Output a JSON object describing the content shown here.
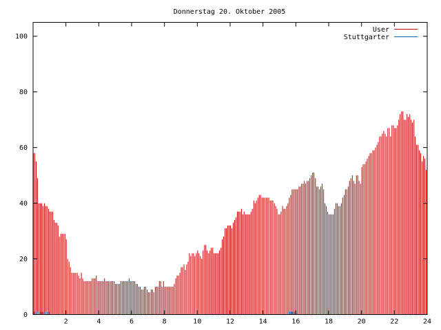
{
  "chart_data": {
    "type": "bar",
    "title": "Donnerstag 20. Oktober 2005",
    "xlabel": "",
    "ylabel": "",
    "xlim": [
      0,
      24
    ],
    "ylim": [
      0,
      105
    ],
    "x_ticks": [
      2,
      4,
      6,
      8,
      10,
      12,
      14,
      16,
      18,
      20,
      22,
      24
    ],
    "y_ticks": [
      0,
      20,
      40,
      60,
      80,
      100
    ],
    "grid": false,
    "legend_position": "top-right",
    "bar_width_hours": 0.042,
    "series": [
      {
        "name": "User",
        "color": "#cc0000",
        "points": [
          [
            0.0,
            58
          ],
          [
            0.08,
            58
          ],
          [
            0.17,
            55
          ],
          [
            0.25,
            49
          ],
          [
            0.33,
            40
          ],
          [
            0.42,
            40
          ],
          [
            0.5,
            40
          ],
          [
            0.58,
            39
          ],
          [
            0.67,
            40
          ],
          [
            0.75,
            39
          ],
          [
            0.83,
            39
          ],
          [
            0.92,
            38
          ],
          [
            1.0,
            37
          ],
          [
            1.08,
            37
          ],
          [
            1.17,
            37
          ],
          [
            1.25,
            34
          ],
          [
            1.33,
            33
          ],
          [
            1.42,
            33
          ],
          [
            1.5,
            32
          ],
          [
            1.58,
            28
          ],
          [
            1.67,
            29
          ],
          [
            1.75,
            29
          ],
          [
            1.83,
            29
          ],
          [
            1.92,
            29
          ],
          [
            2.0,
            27
          ],
          [
            2.08,
            20
          ],
          [
            2.17,
            19
          ],
          [
            2.25,
            17
          ],
          [
            2.33,
            15
          ],
          [
            2.42,
            15
          ],
          [
            2.5,
            15
          ],
          [
            2.58,
            15
          ],
          [
            2.67,
            15
          ],
          [
            2.75,
            14
          ],
          [
            2.83,
            13
          ],
          [
            2.92,
            15
          ],
          [
            3.0,
            13
          ],
          [
            3.08,
            12
          ],
          [
            3.17,
            12
          ],
          [
            3.25,
            12
          ],
          [
            3.33,
            12
          ],
          [
            3.42,
            12
          ],
          [
            3.5,
            12
          ],
          [
            3.58,
            13
          ],
          [
            3.67,
            13
          ],
          [
            3.75,
            13
          ],
          [
            3.83,
            14
          ],
          [
            3.92,
            12
          ],
          [
            4.0,
            12
          ],
          [
            4.08,
            12
          ],
          [
            4.17,
            12
          ],
          [
            4.25,
            12
          ],
          [
            4.33,
            13
          ],
          [
            4.42,
            12
          ],
          [
            4.5,
            12
          ],
          [
            4.58,
            12
          ],
          [
            4.67,
            12
          ],
          [
            4.75,
            12
          ],
          [
            4.83,
            12
          ],
          [
            4.92,
            12
          ],
          [
            5.0,
            11
          ],
          [
            5.08,
            11
          ],
          [
            5.17,
            11
          ],
          [
            5.25,
            11
          ],
          [
            5.33,
            12
          ],
          [
            5.42,
            12
          ],
          [
            5.5,
            12
          ],
          [
            5.58,
            12
          ],
          [
            5.67,
            12
          ],
          [
            5.75,
            12
          ],
          [
            5.83,
            13
          ],
          [
            5.92,
            12
          ],
          [
            6.0,
            12
          ],
          [
            6.08,
            12
          ],
          [
            6.17,
            12
          ],
          [
            6.25,
            11
          ],
          [
            6.33,
            11
          ],
          [
            6.42,
            10
          ],
          [
            6.5,
            10
          ],
          [
            6.58,
            9
          ],
          [
            6.67,
            9
          ],
          [
            6.75,
            10
          ],
          [
            6.83,
            10
          ],
          [
            6.92,
            9
          ],
          [
            7.0,
            8
          ],
          [
            7.08,
            8
          ],
          [
            7.17,
            9
          ],
          [
            7.25,
            9
          ],
          [
            7.33,
            8
          ],
          [
            7.42,
            10
          ],
          [
            7.5,
            10
          ],
          [
            7.58,
            10
          ],
          [
            7.67,
            12
          ],
          [
            7.75,
            12
          ],
          [
            7.83,
            10
          ],
          [
            7.92,
            12
          ],
          [
            8.0,
            10
          ],
          [
            8.08,
            10
          ],
          [
            8.17,
            10
          ],
          [
            8.25,
            10
          ],
          [
            8.33,
            10
          ],
          [
            8.42,
            10
          ],
          [
            8.5,
            10
          ],
          [
            8.58,
            11
          ],
          [
            8.67,
            13
          ],
          [
            8.75,
            14
          ],
          [
            8.83,
            14
          ],
          [
            8.92,
            15
          ],
          [
            9.0,
            17
          ],
          [
            9.08,
            17
          ],
          [
            9.17,
            18
          ],
          [
            9.25,
            16
          ],
          [
            9.33,
            18
          ],
          [
            9.42,
            19
          ],
          [
            9.5,
            22
          ],
          [
            9.58,
            21
          ],
          [
            9.67,
            22
          ],
          [
            9.75,
            22
          ],
          [
            9.83,
            21
          ],
          [
            9.92,
            22
          ],
          [
            10.0,
            23
          ],
          [
            10.08,
            22
          ],
          [
            10.17,
            21
          ],
          [
            10.25,
            20
          ],
          [
            10.33,
            23
          ],
          [
            10.42,
            25
          ],
          [
            10.5,
            25
          ],
          [
            10.58,
            23
          ],
          [
            10.67,
            22
          ],
          [
            10.75,
            23
          ],
          [
            10.83,
            24
          ],
          [
            10.92,
            24
          ],
          [
            11.0,
            22
          ],
          [
            11.08,
            22
          ],
          [
            11.17,
            22
          ],
          [
            11.25,
            22
          ],
          [
            11.33,
            23
          ],
          [
            11.42,
            24
          ],
          [
            11.5,
            27
          ],
          [
            11.58,
            28
          ],
          [
            11.67,
            31
          ],
          [
            11.75,
            31
          ],
          [
            11.83,
            32
          ],
          [
            11.92,
            32
          ],
          [
            12.0,
            32
          ],
          [
            12.08,
            31
          ],
          [
            12.17,
            33
          ],
          [
            12.25,
            34
          ],
          [
            12.33,
            35
          ],
          [
            12.42,
            37
          ],
          [
            12.5,
            37
          ],
          [
            12.58,
            37
          ],
          [
            12.67,
            38
          ],
          [
            12.75,
            36
          ],
          [
            12.83,
            37
          ],
          [
            12.92,
            36
          ],
          [
            13.0,
            36
          ],
          [
            13.08,
            36
          ],
          [
            13.17,
            36
          ],
          [
            13.25,
            37
          ],
          [
            13.33,
            38
          ],
          [
            13.42,
            41
          ],
          [
            13.5,
            40
          ],
          [
            13.58,
            41
          ],
          [
            13.67,
            42
          ],
          [
            13.75,
            43
          ],
          [
            13.83,
            43
          ],
          [
            13.92,
            42
          ],
          [
            14.0,
            42
          ],
          [
            14.08,
            42
          ],
          [
            14.17,
            42
          ],
          [
            14.25,
            42
          ],
          [
            14.33,
            42
          ],
          [
            14.42,
            41
          ],
          [
            14.5,
            41
          ],
          [
            14.58,
            41
          ],
          [
            14.67,
            40
          ],
          [
            14.75,
            39
          ],
          [
            14.83,
            38
          ],
          [
            14.92,
            36
          ],
          [
            15.0,
            36
          ],
          [
            15.08,
            37
          ],
          [
            15.17,
            39
          ],
          [
            15.25,
            38
          ],
          [
            15.33,
            38
          ],
          [
            15.42,
            39
          ],
          [
            15.5,
            40
          ],
          [
            15.58,
            42
          ],
          [
            15.67,
            43
          ],
          [
            15.75,
            45
          ],
          [
            15.83,
            45
          ],
          [
            15.92,
            45
          ],
          [
            16.0,
            45
          ],
          [
            16.08,
            45
          ],
          [
            16.17,
            46
          ],
          [
            16.25,
            46
          ],
          [
            16.33,
            47
          ],
          [
            16.42,
            47
          ],
          [
            16.5,
            48
          ],
          [
            16.58,
            47
          ],
          [
            16.67,
            48
          ],
          [
            16.75,
            48
          ],
          [
            16.83,
            49
          ],
          [
            16.92,
            50
          ],
          [
            17.0,
            51
          ],
          [
            17.08,
            51
          ],
          [
            17.17,
            49
          ],
          [
            17.25,
            46
          ],
          [
            17.33,
            46
          ],
          [
            17.42,
            45
          ],
          [
            17.5,
            46
          ],
          [
            17.58,
            47
          ],
          [
            17.67,
            45
          ],
          [
            17.75,
            40
          ],
          [
            17.83,
            39
          ],
          [
            17.92,
            37
          ],
          [
            18.0,
            36
          ],
          [
            18.08,
            36
          ],
          [
            18.17,
            36
          ],
          [
            18.25,
            36
          ],
          [
            18.33,
            38
          ],
          [
            18.42,
            40
          ],
          [
            18.5,
            40
          ],
          [
            18.58,
            39
          ],
          [
            18.67,
            39
          ],
          [
            18.75,
            40
          ],
          [
            18.83,
            42
          ],
          [
            18.92,
            43
          ],
          [
            19.0,
            45
          ],
          [
            19.08,
            45
          ],
          [
            19.17,
            46
          ],
          [
            19.25,
            48
          ],
          [
            19.33,
            49
          ],
          [
            19.42,
            50
          ],
          [
            19.5,
            48
          ],
          [
            19.58,
            47
          ],
          [
            19.67,
            50
          ],
          [
            19.75,
            50
          ],
          [
            19.83,
            48
          ],
          [
            19.92,
            47
          ],
          [
            20.0,
            53
          ],
          [
            20.08,
            54
          ],
          [
            20.17,
            54
          ],
          [
            20.25,
            55
          ],
          [
            20.33,
            56
          ],
          [
            20.42,
            57
          ],
          [
            20.5,
            58
          ],
          [
            20.58,
            58
          ],
          [
            20.67,
            59
          ],
          [
            20.75,
            59
          ],
          [
            20.83,
            60
          ],
          [
            20.92,
            61
          ],
          [
            21.0,
            62
          ],
          [
            21.08,
            64
          ],
          [
            21.17,
            64
          ],
          [
            21.25,
            65
          ],
          [
            21.33,
            66
          ],
          [
            21.42,
            65
          ],
          [
            21.5,
            64
          ],
          [
            21.58,
            67
          ],
          [
            21.67,
            67
          ],
          [
            21.75,
            64
          ],
          [
            21.83,
            68
          ],
          [
            21.92,
            68
          ],
          [
            22.0,
            67
          ],
          [
            22.08,
            67
          ],
          [
            22.17,
            68
          ],
          [
            22.25,
            70
          ],
          [
            22.33,
            72
          ],
          [
            22.42,
            73
          ],
          [
            22.5,
            73
          ],
          [
            22.58,
            70
          ],
          [
            22.67,
            70
          ],
          [
            22.75,
            72
          ],
          [
            22.83,
            71
          ],
          [
            22.92,
            72
          ],
          [
            23.0,
            70
          ],
          [
            23.08,
            69
          ],
          [
            23.17,
            70
          ],
          [
            23.25,
            64
          ],
          [
            23.33,
            61
          ],
          [
            23.42,
            61
          ],
          [
            23.5,
            59
          ],
          [
            23.58,
            58
          ],
          [
            23.67,
            55
          ],
          [
            23.75,
            57
          ],
          [
            23.83,
            56
          ],
          [
            23.92,
            52
          ]
        ]
      },
      {
        "name": "Stuttgarter",
        "color": "#0066b3",
        "points": [
          [
            0.05,
            1
          ],
          [
            0.15,
            1
          ],
          [
            0.25,
            1
          ],
          [
            0.35,
            1
          ],
          [
            0.45,
            1
          ],
          [
            0.55,
            1
          ],
          [
            0.65,
            1
          ],
          [
            0.75,
            1
          ],
          [
            0.85,
            1
          ],
          [
            0.95,
            1
          ],
          [
            15.5,
            1
          ],
          [
            15.6,
            1
          ],
          [
            15.7,
            1
          ],
          [
            15.8,
            1
          ],
          [
            15.9,
            1
          ],
          [
            16.0,
            1
          ]
        ]
      }
    ]
  }
}
